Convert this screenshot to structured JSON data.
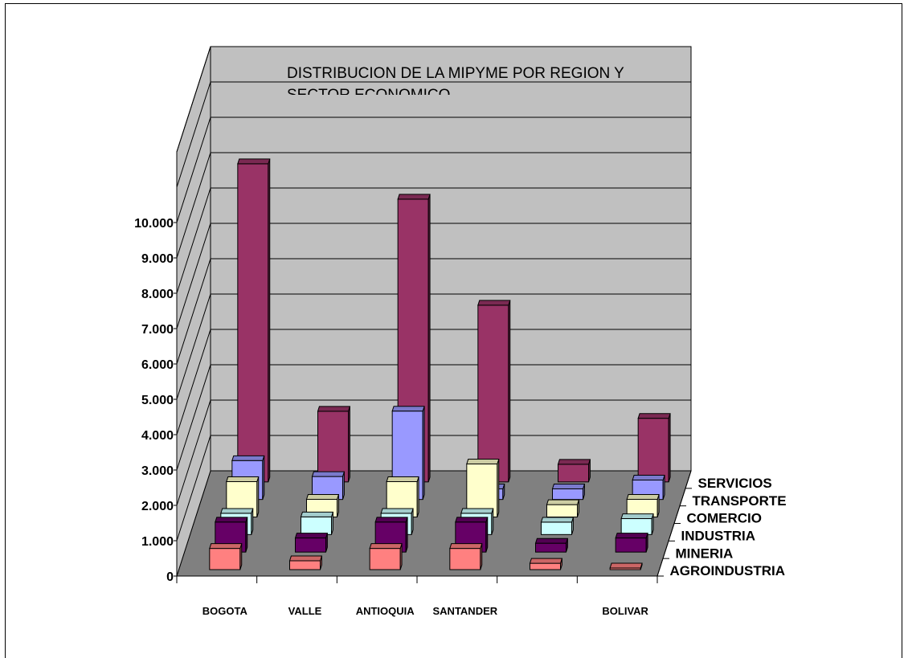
{
  "chart_data": {
    "type": "bar",
    "title_line1": "DISTRIBUCION DE LA MIPYME POR REGION Y",
    "title_line2": "SECTOR ECONOMICO.",
    "categories": [
      "BOGOTA",
      "VALLE",
      "ANTIOQUIA",
      "SANTANDER",
      "",
      "BOLIVAR"
    ],
    "category_colors": [
      "#000000",
      "#000000",
      "#000000",
      "#ff0000",
      "#000000",
      "#000000"
    ],
    "yticks": [
      "0",
      "1.000",
      "2.000",
      "3.000",
      "4.000",
      "5.000",
      "6.000",
      "7.000",
      "8.000",
      "9.000",
      "10.000"
    ],
    "ylim": [
      0,
      12000
    ],
    "series": [
      {
        "name": "AGROINDUSTRIA",
        "color": "#ff8080",
        "values": [
          600,
          250,
          600,
          600,
          180,
          0
        ]
      },
      {
        "name": "MINERIA",
        "color": "#660066",
        "values": [
          850,
          400,
          850,
          850,
          250,
          400
        ]
      },
      {
        "name": "INDUSTRIA",
        "color": "#ccffff",
        "values": [
          600,
          500,
          600,
          600,
          350,
          450
        ]
      },
      {
        "name": "COMERCIO",
        "color": "#ffffcc",
        "values": [
          1000,
          500,
          1000,
          1500,
          350,
          500
        ]
      },
      {
        "name": "TRANSPORTE",
        "color": "#9999ff",
        "values": [
          1100,
          650,
          2500,
          300,
          300,
          550
        ]
      },
      {
        "name": "SERVICIOS",
        "color": "#993366",
        "values": [
          9000,
          2000,
          8000,
          5000,
          500,
          1800
        ]
      }
    ],
    "grid": true,
    "legend": "depth-axis-right"
  }
}
